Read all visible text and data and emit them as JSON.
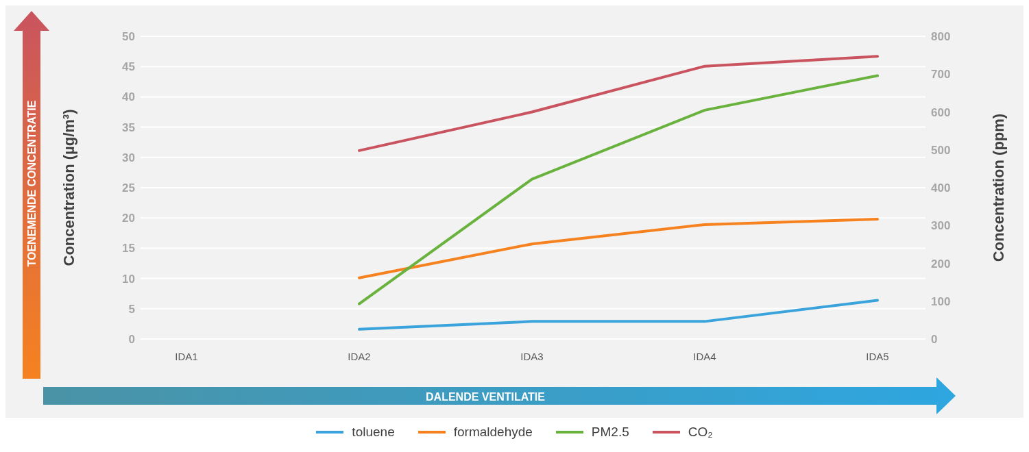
{
  "chart_data": {
    "type": "line",
    "categories": [
      "IDA1",
      "IDA2",
      "IDA3",
      "IDA4",
      "IDA5"
    ],
    "ylabel": "Concentration (µg/m³)",
    "y2label": "Concentration (ppm)",
    "ylim": [
      0,
      50
    ],
    "yticks": [
      0,
      5,
      10,
      15,
      20,
      25,
      30,
      35,
      40,
      45,
      50
    ],
    "y2lim": [
      0,
      800
    ],
    "y2ticks": [
      0,
      100,
      200,
      300,
      400,
      500,
      600,
      700,
      800
    ],
    "series": [
      {
        "name": "toluene",
        "color": "#3aa3dc",
        "values": [
          null,
          1.6,
          2.9,
          2.9,
          6.4
        ]
      },
      {
        "name": "formaldehyde",
        "color": "#f5821f",
        "values": [
          null,
          10.1,
          15.7,
          18.9,
          19.8
        ]
      },
      {
        "name": "PM2.5",
        "color": "#6ab23e",
        "values": [
          null,
          5.8,
          26.4,
          37.8,
          43.5
        ]
      },
      {
        "name": "CO₂",
        "color": "#c9545f",
        "values": [
          null,
          498,
          600,
          721,
          747
        ],
        "axis": "y2"
      }
    ],
    "annotations": [
      "TOENEMENDE CONCENTRATIE",
      "DALENDE VENTILATIE"
    ],
    "grid": "y",
    "legend": "bottom",
    "marker": "none",
    "line_style": "solid"
  }
}
